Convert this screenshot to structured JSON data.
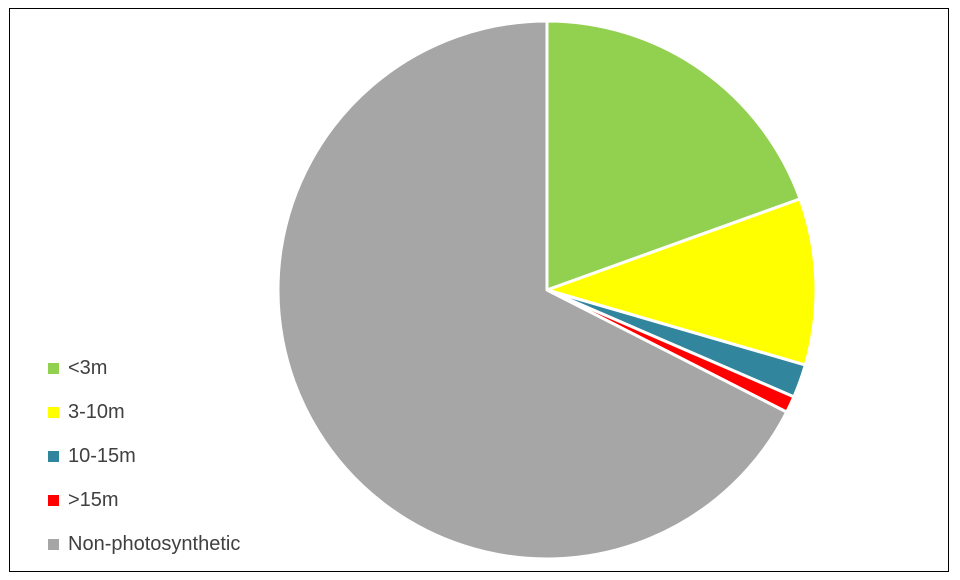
{
  "chart_data": {
    "type": "pie",
    "title": "",
    "slices": [
      {
        "label": "<3m",
        "value": 19.5,
        "color": "#92d050"
      },
      {
        "label": "3-10m",
        "value": 10.0,
        "color": "#ffff00"
      },
      {
        "label": "10-15m",
        "value": 2.0,
        "color": "#31859c"
      },
      {
        "label": ">15m",
        "value": 1.0,
        "color": "#ff0000"
      },
      {
        "label": "Non-photosynthetic",
        "value": 67.5,
        "color": "#a6a6a6"
      }
    ],
    "start_angle_deg": 0,
    "direction": "clockwise",
    "slice_border_color": "#ffffff",
    "legend_position": "left"
  }
}
